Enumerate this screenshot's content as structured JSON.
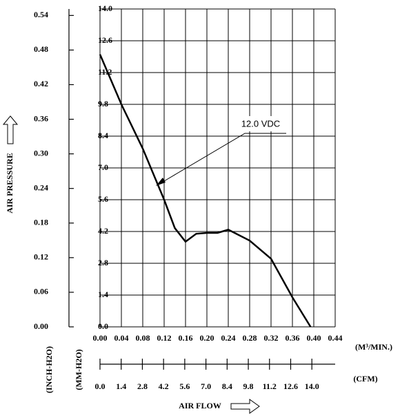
{
  "chart_data": {
    "type": "line",
    "xlabel": "AIR FLOW",
    "ylabel": "AIR PRESSURE",
    "x_unit": "(M³/MIN.)",
    "x2_unit": "(CFM)",
    "y_unit": "(MM-H2O)",
    "y2_unit": "(INCH-H2O)",
    "x": [
      0.0,
      0.04,
      0.08,
      0.12,
      0.14,
      0.16,
      0.18,
      0.2,
      0.22,
      0.24,
      0.28,
      0.32,
      0.36,
      0.394
    ],
    "series": [
      {
        "name": "12.0 VDC",
        "color": "#000000",
        "values": [
          12.0,
          9.8,
          7.85,
          5.6,
          4.35,
          3.75,
          4.1,
          4.14,
          4.14,
          4.28,
          3.8,
          3.0,
          1.3,
          0.0
        ]
      }
    ],
    "xlim": [
      0,
      0.44
    ],
    "xticks": [
      {
        "value": 0,
        "label": "0.00"
      },
      {
        "value": 0.04,
        "label": "0.04"
      },
      {
        "value": 0.08,
        "label": "0.08"
      },
      {
        "value": 0.12,
        "label": "0.12"
      },
      {
        "value": 0.16,
        "label": "0.16"
      },
      {
        "value": 0.2,
        "label": "0.20"
      },
      {
        "value": 0.24,
        "label": "0.24"
      },
      {
        "value": 0.28,
        "label": "0.28"
      },
      {
        "value": 0.32,
        "label": "0.32"
      },
      {
        "value": 0.36,
        "label": "0.36"
      },
      {
        "value": 0.4,
        "label": "0.40"
      },
      {
        "value": 0.44,
        "label": "0.44"
      }
    ],
    "ylim": [
      0,
      14
    ],
    "yticks": [
      {
        "value": 0,
        "label": "0.0"
      },
      {
        "value": 1.4,
        "label": "1.4"
      },
      {
        "value": 2.8,
        "label": "2.8"
      },
      {
        "value": 4.2,
        "label": "4.2"
      },
      {
        "value": 5.6,
        "label": "5.6"
      },
      {
        "value": 7,
        "label": "7.0"
      },
      {
        "value": 8.4,
        "label": "8.4"
      },
      {
        "value": 9.8,
        "label": "9.8"
      },
      {
        "value": 11.2,
        "label": "11.2"
      },
      {
        "value": 12.6,
        "label": "12.6"
      },
      {
        "value": 14,
        "label": "14.0"
      }
    ],
    "y2lim": [
      0,
      0.5512
    ],
    "y2ticks": [
      {
        "value": 0,
        "label": "0.00"
      },
      {
        "value": 0.06,
        "label": "0.06"
      },
      {
        "value": 0.12,
        "label": "0.12"
      },
      {
        "value": 0.18,
        "label": "0.18"
      },
      {
        "value": 0.24,
        "label": "0.24"
      },
      {
        "value": 0.3,
        "label": "0.30"
      },
      {
        "value": 0.36,
        "label": "0.36"
      },
      {
        "value": 0.42,
        "label": "0.42"
      },
      {
        "value": 0.48,
        "label": "0.48"
      },
      {
        "value": 0.54,
        "label": "0.54"
      }
    ],
    "x2lim": [
      0,
      15.54
    ],
    "x2ticks": [
      {
        "value": 0,
        "label": "0.0"
      },
      {
        "value": 1.4,
        "label": "1.4"
      },
      {
        "value": 2.8,
        "label": "2.8"
      },
      {
        "value": 4.2,
        "label": "4.2"
      },
      {
        "value": 5.6,
        "label": "5.6"
      },
      {
        "value": 7,
        "label": "7.0"
      },
      {
        "value": 8.4,
        "label": "8.4"
      },
      {
        "value": 9.8,
        "label": "9.8"
      },
      {
        "value": 11.2,
        "label": "11.2"
      },
      {
        "value": 12.6,
        "label": "12.6"
      },
      {
        "value": 14,
        "label": "14.0"
      }
    ],
    "grid": true
  }
}
